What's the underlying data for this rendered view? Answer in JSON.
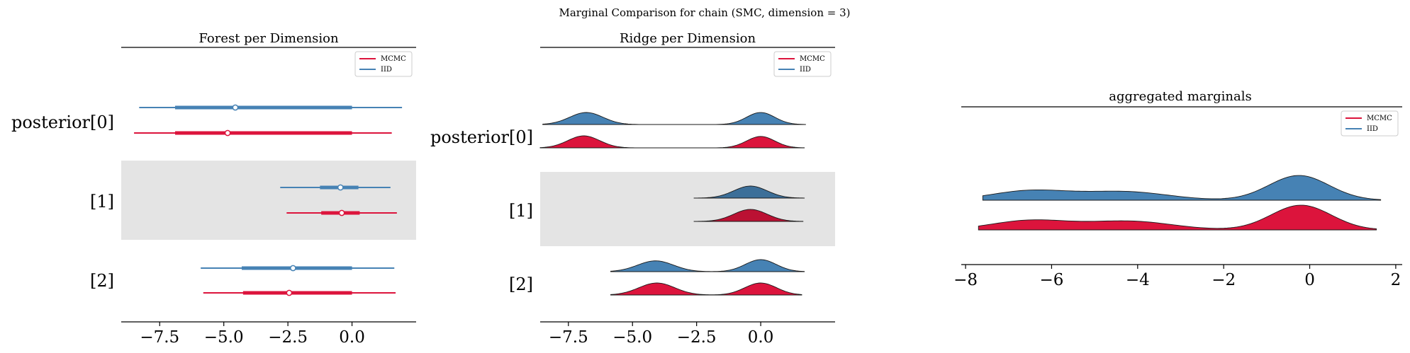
{
  "figure": {
    "suptitle": "Marginal Comparison for chain (SMC, dimension = 3)"
  },
  "colors": {
    "mcmc": "#dc143c",
    "iid": "#4682b4",
    "band": "#e4e4e4"
  },
  "legend": {
    "mcmc": "MCMC",
    "iid": "IID"
  },
  "chart_data": [
    {
      "type": "forest",
      "title": "Forest per Dimension",
      "ylabels": [
        "posterior[0]",
        "[1]",
        "[2]"
      ],
      "xlim": [
        -9.0,
        2.5
      ],
      "xticks": [
        -7.5,
        -5.0,
        -2.5,
        0.0
      ],
      "xtick_labels": [
        "−7.5",
        "−5.0",
        "−2.5",
        "0.0"
      ],
      "legend_position": "top-right",
      "series": [
        {
          "name": "IID",
          "dims": [
            {
              "hdi94": [
                -8.3,
                1.95
              ],
              "hdi50": [
                -6.9,
                0.0
              ],
              "center": -4.55
            },
            {
              "hdi94": [
                -2.8,
                1.5
              ],
              "hdi50": [
                -1.25,
                0.25
              ],
              "center": -0.45
            },
            {
              "hdi94": [
                -5.9,
                1.65
              ],
              "hdi50": [
                -4.3,
                0.0
              ],
              "center": -2.3
            }
          ]
        },
        {
          "name": "MCMC",
          "dims": [
            {
              "hdi94": [
                -8.5,
                1.55
              ],
              "hdi50": [
                -6.9,
                0.0
              ],
              "center": -4.85
            },
            {
              "hdi94": [
                -2.55,
                1.75
              ],
              "hdi50": [
                -1.2,
                0.3
              ],
              "center": -0.4
            },
            {
              "hdi94": [
                -5.8,
                1.7
              ],
              "hdi50": [
                -4.25,
                0.0
              ],
              "center": -2.45
            }
          ]
        }
      ]
    },
    {
      "type": "ridge",
      "title": "Ridge per Dimension",
      "ylabels": [
        "posterior[0]",
        "[1]",
        "[2]"
      ],
      "xlim": [
        -8.6,
        2.9
      ],
      "xticks": [
        -7.5,
        -5.0,
        -2.5,
        0.0
      ],
      "xtick_labels": [
        "−7.5",
        "−5.0",
        "−2.5",
        "0.0"
      ],
      "legend_position": "top-right",
      "series": [
        {
          "name": "IID",
          "dims": [
            {
              "range": [
                -8.5,
                1.75
              ],
              "peaks": [
                [
                  -6.8,
                  0.65,
                  1.0
                ],
                [
                  0.0,
                  0.55,
                  1.0
                ]
              ]
            },
            {
              "range": [
                -2.6,
                1.7
              ],
              "peaks": [
                [
                  -0.4,
                  0.65,
                  1.0
                ]
              ]
            },
            {
              "range": [
                -5.85,
                1.7
              ],
              "peaks": [
                [
                  -4.1,
                  0.7,
                  0.9
                ],
                [
                  0.0,
                  0.6,
                  1.0
                ]
              ]
            }
          ]
        },
        {
          "name": "MCMC",
          "dims": [
            {
              "range": [
                -8.6,
                1.7
              ],
              "peaks": [
                [
                  -6.9,
                  0.62,
                  1.0
                ],
                [
                  0.0,
                  0.55,
                  0.95
                ]
              ]
            },
            {
              "range": [
                -2.6,
                1.65
              ],
              "peaks": [
                [
                  -0.4,
                  0.65,
                  1.0
                ]
              ]
            },
            {
              "range": [
                -5.85,
                1.6
              ],
              "peaks": [
                [
                  -4.05,
                  0.7,
                  0.95
                ],
                [
                  0.0,
                  0.62,
                  0.95
                ]
              ]
            }
          ]
        }
      ]
    },
    {
      "type": "area",
      "title": "aggregated marginals",
      "xlim": [
        -8.1,
        2.15
      ],
      "xticks": [
        -8,
        -6,
        -4,
        -2,
        0,
        2
      ],
      "xtick_labels": [
        "−8",
        "−6",
        "−4",
        "−2",
        "0",
        "2"
      ],
      "legend_position": "top-right",
      "series": [
        {
          "name": "IID",
          "range": [
            -7.6,
            1.65
          ],
          "peaks": [
            [
              -6.5,
              0.9,
              0.38
            ],
            [
              -4.3,
              1.0,
              0.34
            ],
            [
              -0.25,
              0.7,
              1.0
            ]
          ]
        },
        {
          "name": "MCMC",
          "range": [
            -7.7,
            1.55
          ],
          "peaks": [
            [
              -6.5,
              0.9,
              0.38
            ],
            [
              -4.2,
              1.0,
              0.35
            ],
            [
              -0.2,
              0.7,
              1.0
            ]
          ]
        }
      ]
    }
  ]
}
